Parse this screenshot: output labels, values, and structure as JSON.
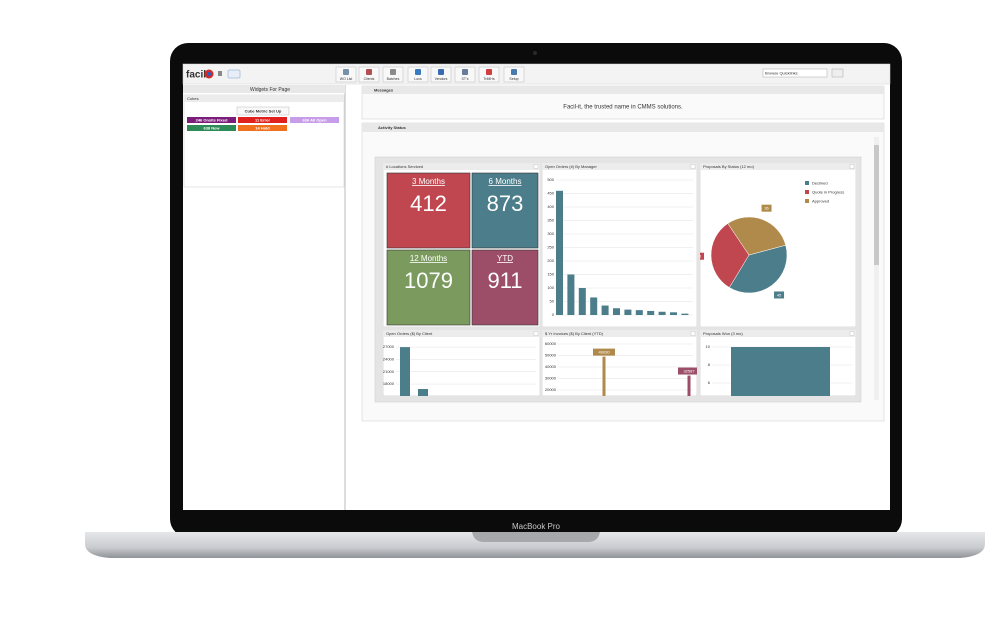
{
  "laptop": {
    "label": "MacBook Pro"
  },
  "app": {
    "logo": "facil",
    "toolbar": [
      "WO List",
      "Clients",
      "Batches",
      "Locs",
      "Vendors",
      "ST's",
      "TriMHs",
      "Setup"
    ],
    "quicklinks": "Browse Quicklinks"
  },
  "left_panel": {
    "title": "Widgets For Page",
    "section": "Cubes",
    "setup_button": "Cube Metric Set Up",
    "cubes": [
      {
        "label": "246 Onsite Fixed",
        "color": "#7b1e7a"
      },
      {
        "label": "11 Error",
        "color": "#e0201c"
      },
      {
        "label": "636 All Open",
        "color": "#c79ce8"
      },
      {
        "label": "638 New",
        "color": "#2e8b57"
      },
      {
        "label": "14 Hold",
        "color": "#f07020"
      }
    ]
  },
  "messages": {
    "title": "Messages",
    "text": "Facil-it, the trusted name in CMMS solutions."
  },
  "activity": {
    "title": "Activity Status",
    "widgets": [
      {
        "type": "tiles",
        "title": "# Locations Serviced",
        "tiles": [
          {
            "label": "3 Months",
            "value": 412,
            "color": "#c0474f"
          },
          {
            "label": "6 Months",
            "value": 873,
            "color": "#4b7d8a"
          },
          {
            "label": "12 Months",
            "value": 1079,
            "color": "#7a9a5e"
          },
          {
            "label": "YTD",
            "value": 911,
            "color": "#9c4e68"
          }
        ]
      },
      {
        "type": "bar",
        "title": "Open Orders (#) By Manager",
        "categories": [
          null,
          null,
          null,
          null,
          null,
          null,
          null,
          null,
          null,
          null,
          null,
          null
        ],
        "values": [
          460,
          150,
          100,
          65,
          35,
          25,
          20,
          18,
          15,
          12,
          10,
          5
        ],
        "color": "#4b7d8a",
        "ylim": [
          0,
          500
        ],
        "yticks": [
          0,
          50,
          100,
          150,
          200,
          250,
          300,
          350,
          400,
          450,
          500
        ],
        "grid": true
      },
      {
        "type": "pie",
        "title": "Proposals By Status (12 mo)",
        "categories": [
          "Declined",
          "Quote in Progress",
          "Approved"
        ],
        "values": [
          45,
          38,
          36
        ],
        "colors": [
          "#4b7d8a",
          "#c0474f",
          "#b08a4a"
        ]
      },
      {
        "type": "bar",
        "title": "Open Orders ($) By Client",
        "categories": [
          null,
          null
        ],
        "values": [
          27000,
          16800
        ],
        "color": "#4b7d8a",
        "ylim": [
          0,
          28000
        ],
        "yticks": [
          18000,
          21000,
          24000,
          27000
        ],
        "grid": true
      },
      {
        "type": "lollipop",
        "title": "$ Yr Invoices ($) By Client (YTD)",
        "categories": [
          null,
          null
        ],
        "values": [
          49030,
          32587
        ],
        "colors": [
          "#b08a4a",
          "#9c4e68"
        ],
        "ylim": [
          0,
          62000
        ],
        "yticks": [
          20000,
          30000,
          40000,
          50000,
          60000
        ],
        "grid": true
      },
      {
        "type": "bar",
        "title": "Proposals Won (3 mo)",
        "categories": [
          null
        ],
        "values": [
          10
        ],
        "color": "#4b7d8a",
        "ylim": [
          0,
          10.5
        ],
        "yticks": [
          6,
          8,
          10
        ],
        "grid": true
      }
    ]
  }
}
